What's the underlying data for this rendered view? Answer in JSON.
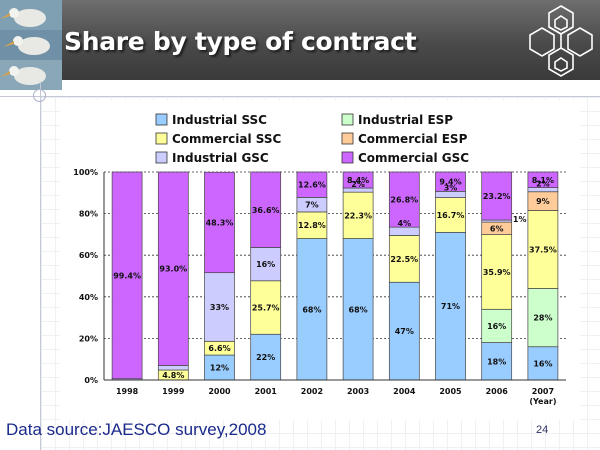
{
  "slide": {
    "title": "Share by type of contract",
    "source": "Data source:JAESCO survey,2008",
    "page_number": "24"
  },
  "chart_data": {
    "type": "bar",
    "stacked": true,
    "title": "",
    "xlabel": "(Year)",
    "ylabel": "",
    "ylim": [
      0,
      100
    ],
    "y_ticks": [
      "0%",
      "20%",
      "40%",
      "60%",
      "80%",
      "100%"
    ],
    "categories": [
      "1998",
      "1999",
      "2000",
      "2001",
      "2002",
      "2003",
      "2004",
      "2005",
      "2006",
      "2007"
    ],
    "legend_position": "top",
    "series": [
      {
        "name": "Industrial SSC",
        "color": "#99ccff",
        "values": [
          0,
          0,
          12,
          22,
          68,
          68,
          47,
          71,
          18,
          16
        ],
        "labels": [
          "",
          "",
          "12%",
          "22%",
          "68%",
          "68%",
          "47%",
          "71%",
          "18%",
          "16%"
        ]
      },
      {
        "name": "Industrial ESP",
        "color": "#ccffcc",
        "values": [
          0,
          0,
          0,
          0,
          0,
          0,
          0,
          0,
          16,
          28
        ],
        "labels": [
          "",
          "",
          "",
          "",
          "",
          "",
          "",
          "",
          "16%",
          "28%"
        ]
      },
      {
        "name": "Commercial SSC",
        "color": "#ffff99",
        "values": [
          0,
          4.8,
          6.6,
          25.7,
          12.8,
          22.3,
          22.5,
          16.7,
          35.9,
          37.5
        ],
        "labels": [
          "",
          "4.8%",
          "6.6%",
          "25.7%",
          "12.8%",
          "22.3%",
          "22.5%",
          "16.7%",
          "35.9%",
          "37.5%"
        ]
      },
      {
        "name": "Commercial ESP",
        "color": "#ffcc99",
        "values": [
          0,
          0,
          0,
          0,
          0,
          0,
          0,
          0,
          6,
          9
        ],
        "labels": [
          "",
          "",
          "",
          "",
          "",
          "",
          "",
          "",
          "6%",
          "9%"
        ]
      },
      {
        "name": "Industrial GSC",
        "color": "#ccccff",
        "values": [
          0.6,
          2.2,
          33,
          16,
          7,
          2,
          4,
          3,
          1,
          2
        ],
        "labels": [
          "",
          "",
          "33%",
          "16%",
          "7%",
          "2%",
          "4%",
          "3%",
          "1%",
          "2%"
        ]
      },
      {
        "name": "Commercial GSC",
        "color": "#cc66ff",
        "values": [
          99.4,
          93.0,
          48.3,
          36.6,
          12.6,
          8.4,
          26.8,
          9.4,
          23.2,
          8.1
        ],
        "labels": [
          "99.4%",
          "93.0%",
          "48.3%",
          "36.6%",
          "12.6%",
          "8.4%",
          "26.8%",
          "9.4%",
          "23.2%",
          "8.1%"
        ]
      }
    ]
  }
}
